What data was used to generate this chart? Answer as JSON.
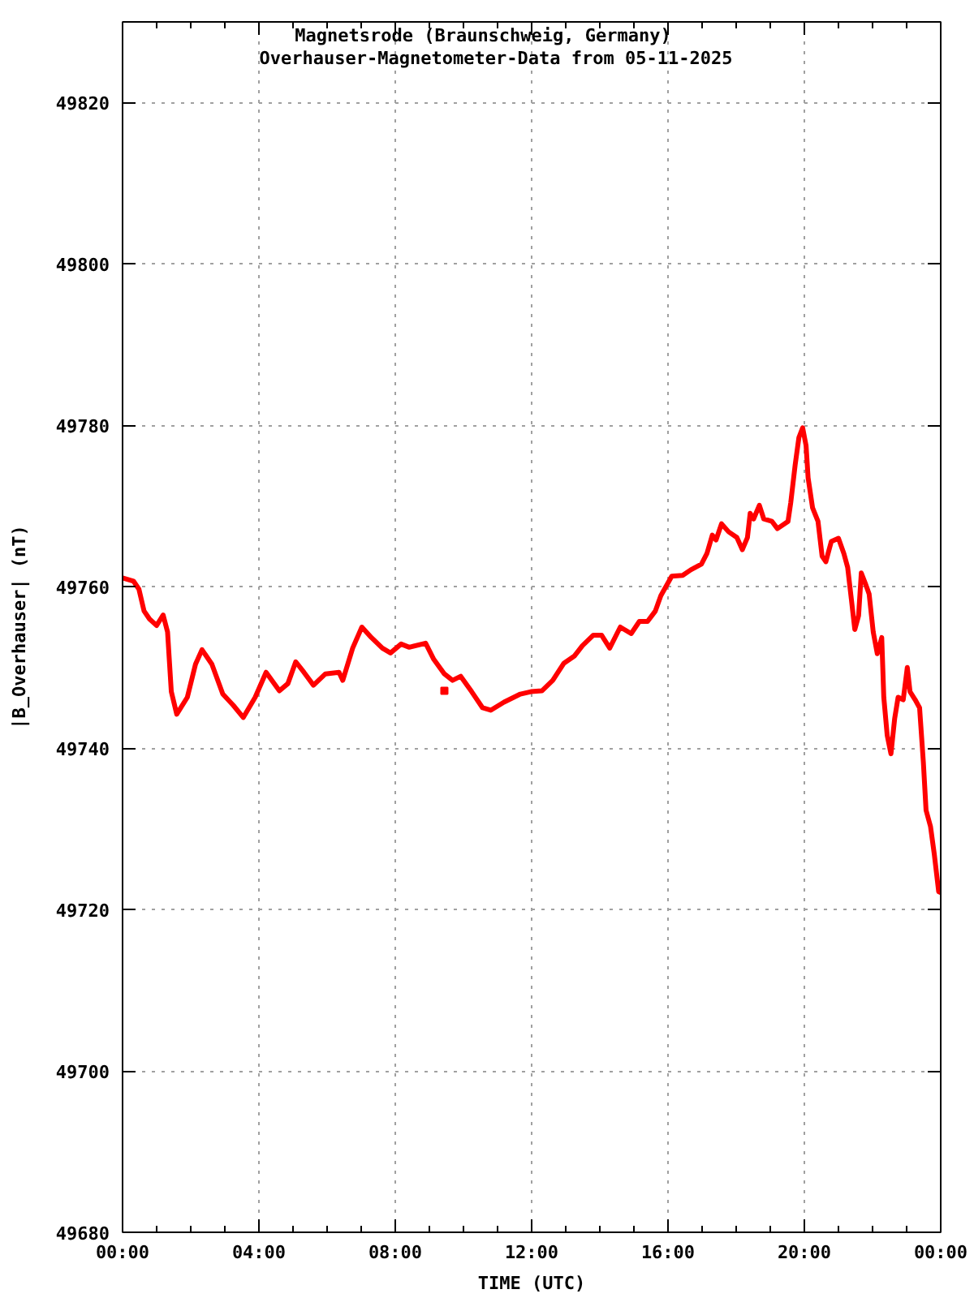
{
  "chart_data": {
    "type": "line",
    "title": "Magnetsrode (Braunschweig, Germany)",
    "subtitle": "Overhauser-Magnetometer-Data from 05-11-2025",
    "xlabel": "TIME (UTC)",
    "ylabel": "|B_Overhauser| (nT)",
    "xlim": [
      0,
      24
    ],
    "ylim": [
      49680,
      49830
    ],
    "xticks": [
      {
        "value": 0,
        "label": "00:00"
      },
      {
        "value": 1,
        "label": null
      },
      {
        "value": 2,
        "label": null
      },
      {
        "value": 3,
        "label": null
      },
      {
        "value": 4,
        "label": "04:00"
      },
      {
        "value": 5,
        "label": null
      },
      {
        "value": 6,
        "label": null
      },
      {
        "value": 7,
        "label": null
      },
      {
        "value": 8,
        "label": "08:00"
      },
      {
        "value": 9,
        "label": null
      },
      {
        "value": 10,
        "label": null
      },
      {
        "value": 11,
        "label": null
      },
      {
        "value": 12,
        "label": "12:00"
      },
      {
        "value": 13,
        "label": null
      },
      {
        "value": 14,
        "label": null
      },
      {
        "value": 15,
        "label": null
      },
      {
        "value": 16,
        "label": "16:00"
      },
      {
        "value": 17,
        "label": null
      },
      {
        "value": 18,
        "label": null
      },
      {
        "value": 19,
        "label": null
      },
      {
        "value": 20,
        "label": "20:00"
      },
      {
        "value": 21,
        "label": null
      },
      {
        "value": 22,
        "label": null
      },
      {
        "value": 23,
        "label": null
      },
      {
        "value": 24,
        "label": "00:00"
      }
    ],
    "yticks": [
      49680,
      49700,
      49720,
      49740,
      49760,
      49780,
      49800,
      49820
    ],
    "grid": true,
    "line_style": "solid",
    "series": [
      {
        "color": "#ff0000",
        "x": [
          0.0,
          0.32,
          0.48,
          0.63,
          0.79,
          1.0,
          1.19,
          1.32,
          1.43,
          1.59,
          1.9,
          2.14,
          2.33,
          2.62,
          2.94,
          3.25,
          3.54,
          3.89,
          4.21,
          4.6,
          4.85,
          5.08,
          5.32,
          5.6,
          5.95,
          6.35,
          6.46,
          6.75,
          7.02,
          7.3,
          7.62,
          7.86,
          8.17,
          8.41,
          8.89,
          9.13,
          9.44,
          9.68,
          9.92,
          10.24,
          10.56,
          10.8,
          11.19,
          11.67,
          11.98,
          12.3,
          12.62,
          12.94,
          13.25,
          13.49,
          13.81,
          14.05,
          14.29,
          14.6,
          14.92,
          15.16,
          15.4,
          15.63,
          15.79,
          16.11,
          16.43,
          16.67,
          16.98,
          17.14,
          17.3,
          17.41,
          17.57,
          17.78,
          18.02,
          18.18,
          18.33,
          18.41,
          18.51,
          18.68,
          18.81,
          19.05,
          19.21,
          19.52,
          19.6,
          19.73,
          19.84,
          19.95,
          20.05,
          20.11,
          20.24,
          20.4,
          20.52,
          20.63,
          20.79,
          21.0,
          21.16,
          21.27,
          21.38,
          21.48,
          21.59,
          21.67,
          21.79,
          21.9,
          22.02,
          22.14,
          22.27,
          22.33,
          22.43,
          22.54,
          22.65,
          22.75,
          22.9,
          23.02,
          23.1,
          23.25,
          23.38,
          23.49,
          23.57,
          23.7,
          23.81,
          23.94,
          24.0
        ],
        "values": [
          49761.1,
          49760.7,
          49759.7,
          49757.0,
          49756.0,
          49755.2,
          49756.5,
          49754.4,
          49747.0,
          49744.2,
          49746.3,
          49750.4,
          49752.2,
          49750.4,
          49746.7,
          49745.3,
          49743.8,
          49746.3,
          49749.4,
          49747.1,
          49748.0,
          49750.7,
          49749.4,
          49747.8,
          49749.2,
          49749.4,
          49748.4,
          49752.4,
          49755.0,
          49753.7,
          49752.4,
          49751.8,
          49752.9,
          49752.5,
          49753.0,
          49751.0,
          49749.2,
          49748.4,
          49748.9,
          49747.0,
          49745.0,
          49744.7,
          49745.7,
          49746.7,
          49747.0,
          49747.1,
          49748.4,
          49750.5,
          49751.4,
          49752.7,
          49754.0,
          49754.0,
          49752.4,
          49755.0,
          49754.2,
          49755.7,
          49755.7,
          49757.0,
          49758.9,
          49761.3,
          49761.4,
          49762.1,
          49762.8,
          49764.1,
          49766.4,
          49765.8,
          49767.8,
          49766.8,
          49766.1,
          49764.6,
          49766.1,
          49769.1,
          49768.4,
          49770.1,
          49768.4,
          49768.1,
          49767.2,
          49768.1,
          49770.4,
          49775.1,
          49778.5,
          49779.7,
          49777.5,
          49773.5,
          49769.8,
          49768.1,
          49763.8,
          49763.1,
          49765.6,
          49766.0,
          49764.1,
          49762.4,
          49758.4,
          49754.7,
          49756.4,
          49761.7,
          49760.4,
          49759.1,
          49754.4,
          49751.7,
          49753.7,
          49746.3,
          49741.6,
          49739.3,
          49743.7,
          49746.3,
          49746.0,
          49750.0,
          49747.0,
          49746.0,
          49745.0,
          49738.3,
          49732.3,
          49730.3,
          49726.9,
          49722.2,
          49722.1
        ]
      },
      {
        "type": "scatter",
        "color": "#ff0000",
        "marker": "square",
        "x": [
          9.44
        ],
        "values": [
          49747.1
        ]
      }
    ]
  }
}
